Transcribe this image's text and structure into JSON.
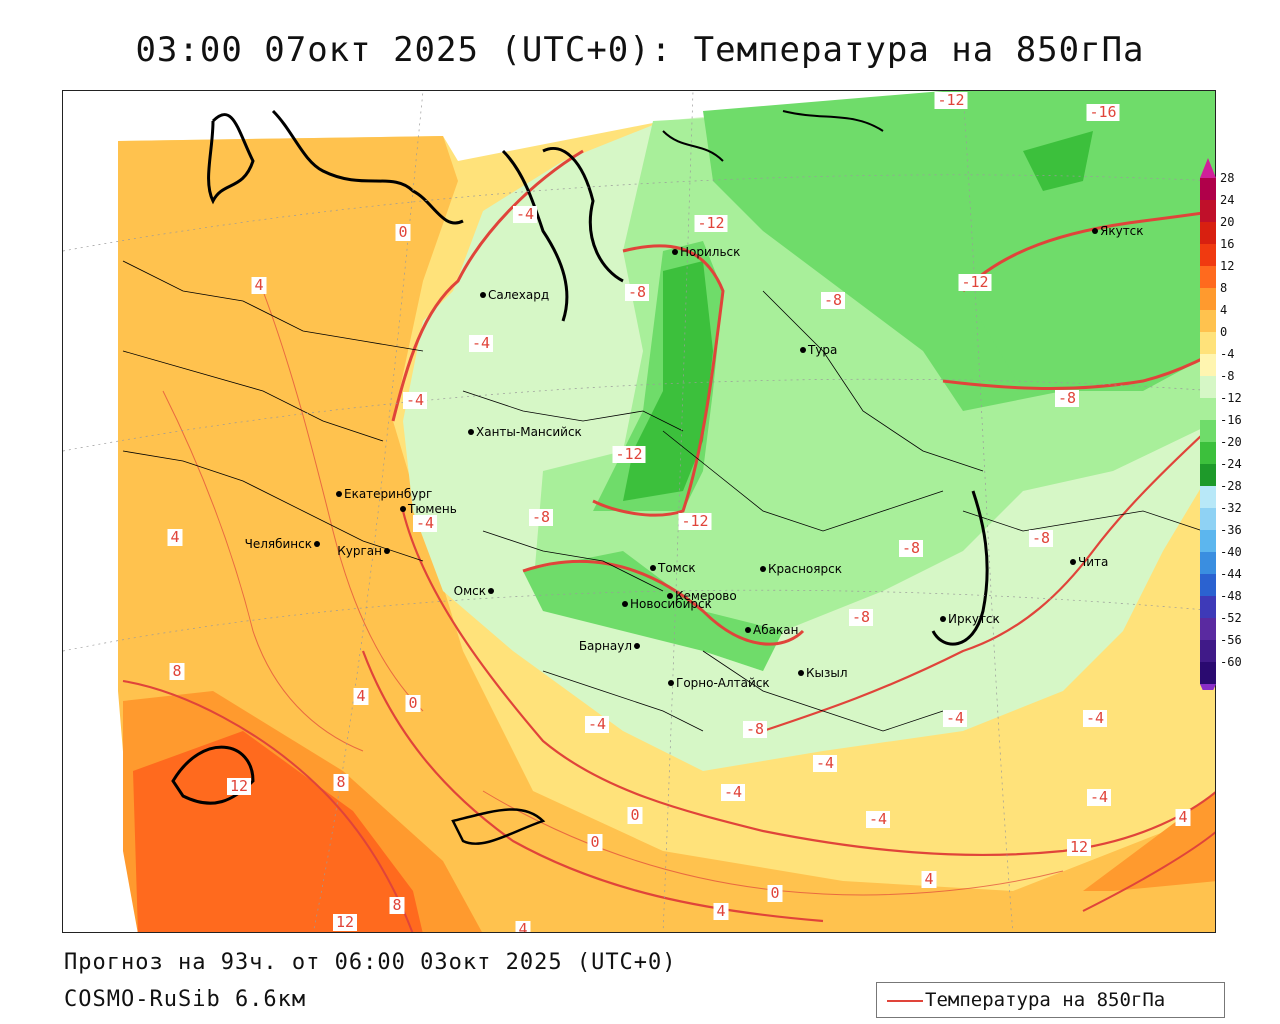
{
  "title": "03:00 07окт 2025 (UTC+0): Температура на 850гПа",
  "footer": {
    "forecast": "Прогноз на 93ч. от 06:00 03окт 2025 (UTC+0)",
    "model": "COSMO-RuSib 6.6км"
  },
  "legend": {
    "label": "Температура на 850гПа",
    "line_color": "#e0443a"
  },
  "colorbar": {
    "ticks": [
      "28",
      "24",
      "20",
      "16",
      "12",
      "8",
      "4",
      "0",
      "-4",
      "-8",
      "-12",
      "-16",
      "-20",
      "-24",
      "-28",
      "-32",
      "-36",
      "-40",
      "-44",
      "-48",
      "-52",
      "-56",
      "-60"
    ],
    "colors": [
      "#b0004a",
      "#c0102a",
      "#d82010",
      "#f03a10",
      "#ff6a1e",
      "#ff9a2e",
      "#ffc24e",
      "#ffe27a",
      "#fff5b0",
      "#d6f7c6",
      "#a8ef9a",
      "#6fdc6a",
      "#3cc03c",
      "#1e9a2a",
      "#b8e8f8",
      "#8fd2f4",
      "#5cb6ee",
      "#3a8ee0",
      "#2b62d0",
      "#3e3ab8",
      "#5a2aa0",
      "#401a88",
      "#2a0a70"
    ]
  },
  "cities": [
    {
      "name": "Салехард"
    },
    {
      "name": "Норильск"
    },
    {
      "name": "Якутск"
    },
    {
      "name": "Тура"
    },
    {
      "name": "Ханты-Мансийск"
    },
    {
      "name": "Екатеринбург"
    },
    {
      "name": "Тюмень"
    },
    {
      "name": "Челябинск"
    },
    {
      "name": "Курган"
    },
    {
      "name": "Омск"
    },
    {
      "name": "Новосибирск"
    },
    {
      "name": "Томск"
    },
    {
      "name": "Кемерово"
    },
    {
      "name": "Красноярск"
    },
    {
      "name": "Барнаул"
    },
    {
      "name": "Абакан"
    },
    {
      "name": "Горно-Алтайск"
    },
    {
      "name": "Кызыл"
    },
    {
      "name": "Иркутск"
    },
    {
      "name": "Чита"
    }
  ],
  "contour_labels": [
    "-12",
    "-16",
    "-4",
    "-12",
    "-12",
    "-8",
    "-8",
    "-4",
    "4",
    "0",
    "-4",
    "-12",
    "-12",
    "-8",
    "-4",
    "4",
    "-8",
    "-8",
    "-8",
    "-8",
    "8",
    "4",
    "0",
    "-4",
    "-8",
    "-4",
    "-4",
    "-4",
    "-4",
    "12",
    "8",
    "0",
    "-4",
    "-4",
    "0",
    "4",
    "12",
    "12",
    "8",
    "4",
    "4",
    "0",
    "4"
  ]
}
